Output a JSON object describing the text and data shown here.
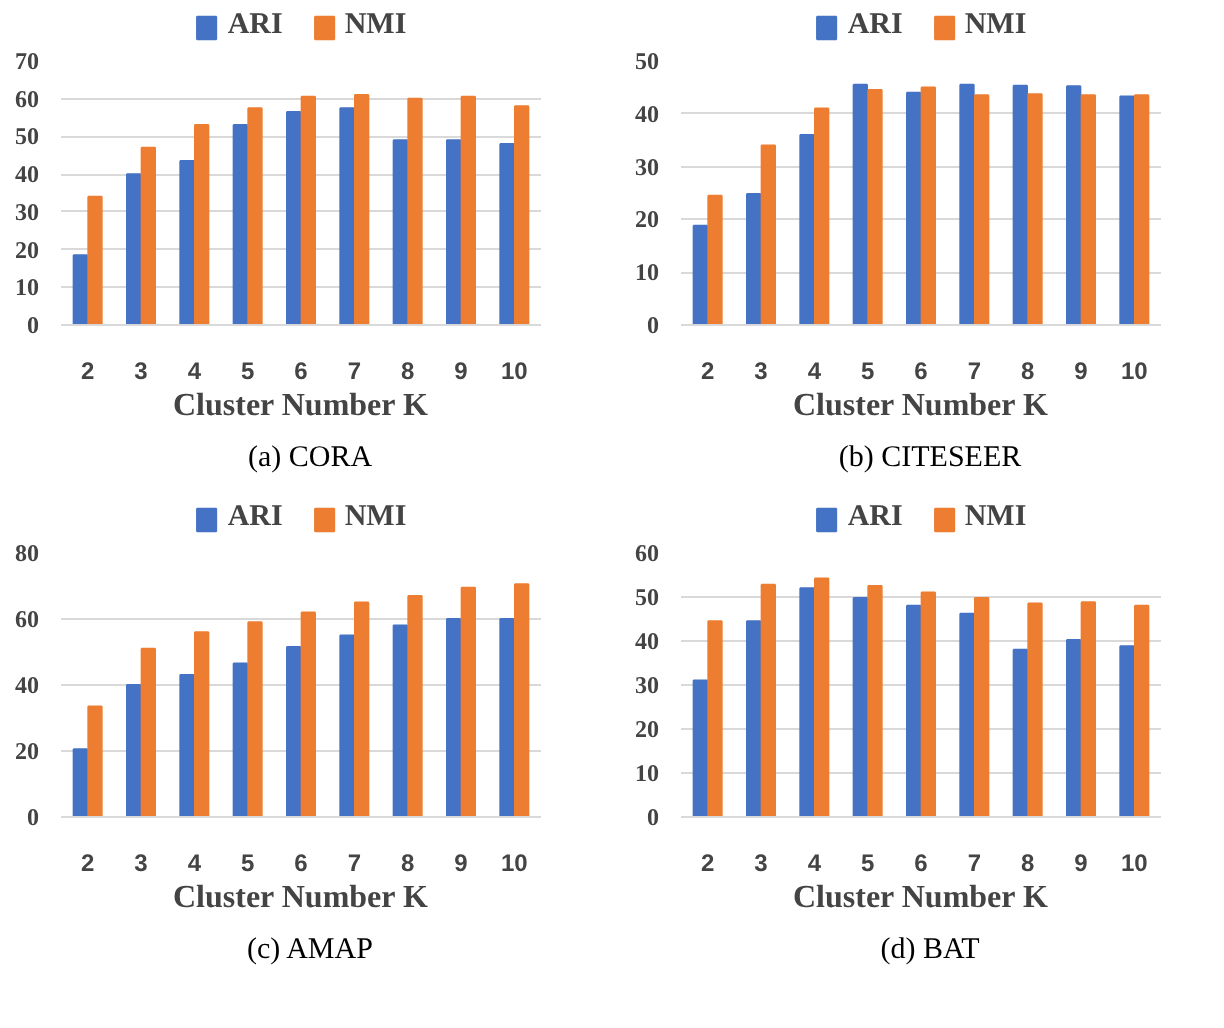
{
  "chart_data": [
    {
      "type": "bar",
      "categories": [
        "2",
        "3",
        "4",
        "5",
        "6",
        "7",
        "8",
        "9",
        "10"
      ],
      "xlabel": "Cluster Number K",
      "ylim": [
        0,
        70
      ],
      "yticks": [
        0,
        10,
        20,
        30,
        40,
        50,
        60,
        70
      ],
      "grid": "y",
      "legend": "top",
      "annotations": [
        "(a) CORA"
      ],
      "series": [
        {
          "name": "ARI",
          "color": "#4472c4",
          "values": [
            18.5,
            40,
            43.5,
            53,
            56.5,
            57.5,
            49,
            49,
            48
          ]
        },
        {
          "name": "NMI",
          "color": "#ed7d31",
          "values": [
            34,
            47,
            53,
            57.5,
            60.5,
            61,
            60,
            60.5,
            58
          ]
        }
      ]
    },
    {
      "type": "bar",
      "categories": [
        "2",
        "3",
        "4",
        "5",
        "6",
        "7",
        "8",
        "9",
        "10"
      ],
      "xlabel": "Cluster Number K",
      "ylim": [
        0,
        50
      ],
      "yticks": [
        0,
        10,
        20,
        30,
        40,
        50
      ],
      "grid": "y",
      "legend": "top",
      "annotations": [
        "(b) CITESEER"
      ],
      "series": [
        {
          "name": "ARI",
          "color": "#4472c4",
          "values": [
            18.8,
            24.8,
            36,
            45.5,
            44,
            45.5,
            45.3,
            45.2,
            43.3
          ]
        },
        {
          "name": "NMI",
          "color": "#ed7d31",
          "values": [
            24.5,
            34,
            41,
            44.5,
            45,
            43.5,
            43.7,
            43.5,
            43.5
          ]
        }
      ]
    },
    {
      "type": "bar",
      "categories": [
        "2",
        "3",
        "4",
        "5",
        "6",
        "7",
        "8",
        "9",
        "10"
      ],
      "xlabel": "Cluster Number K",
      "ylim": [
        0,
        80
      ],
      "yticks": [
        0,
        20,
        40,
        60,
        80
      ],
      "grid": "y",
      "legend": "top",
      "annotations": [
        "(c) AMAP"
      ],
      "series": [
        {
          "name": "ARI",
          "color": "#4472c4",
          "values": [
            20.5,
            40,
            43,
            46.5,
            51.5,
            55,
            58,
            60,
            60
          ]
        },
        {
          "name": "NMI",
          "color": "#ed7d31",
          "values": [
            33.5,
            51,
            56,
            59,
            62,
            65,
            67,
            69.5,
            70.5
          ]
        }
      ]
    },
    {
      "type": "bar",
      "categories": [
        "2",
        "3",
        "4",
        "5",
        "6",
        "7",
        "8",
        "9",
        "10"
      ],
      "xlabel": "Cluster Number K",
      "ylim": [
        0,
        60
      ],
      "yticks": [
        0,
        10,
        20,
        30,
        40,
        50,
        60
      ],
      "grid": "y",
      "legend": "top",
      "annotations": [
        "(d) BAT"
      ],
      "series": [
        {
          "name": "ARI",
          "color": "#4472c4",
          "values": [
            31,
            44.5,
            52,
            49.8,
            48,
            46.2,
            38,
            40.2,
            38.8
          ]
        },
        {
          "name": "NMI",
          "color": "#ed7d31",
          "values": [
            44.5,
            52.8,
            54.2,
            52.5,
            51,
            49.8,
            48.5,
            48.8,
            48
          ]
        }
      ]
    }
  ]
}
